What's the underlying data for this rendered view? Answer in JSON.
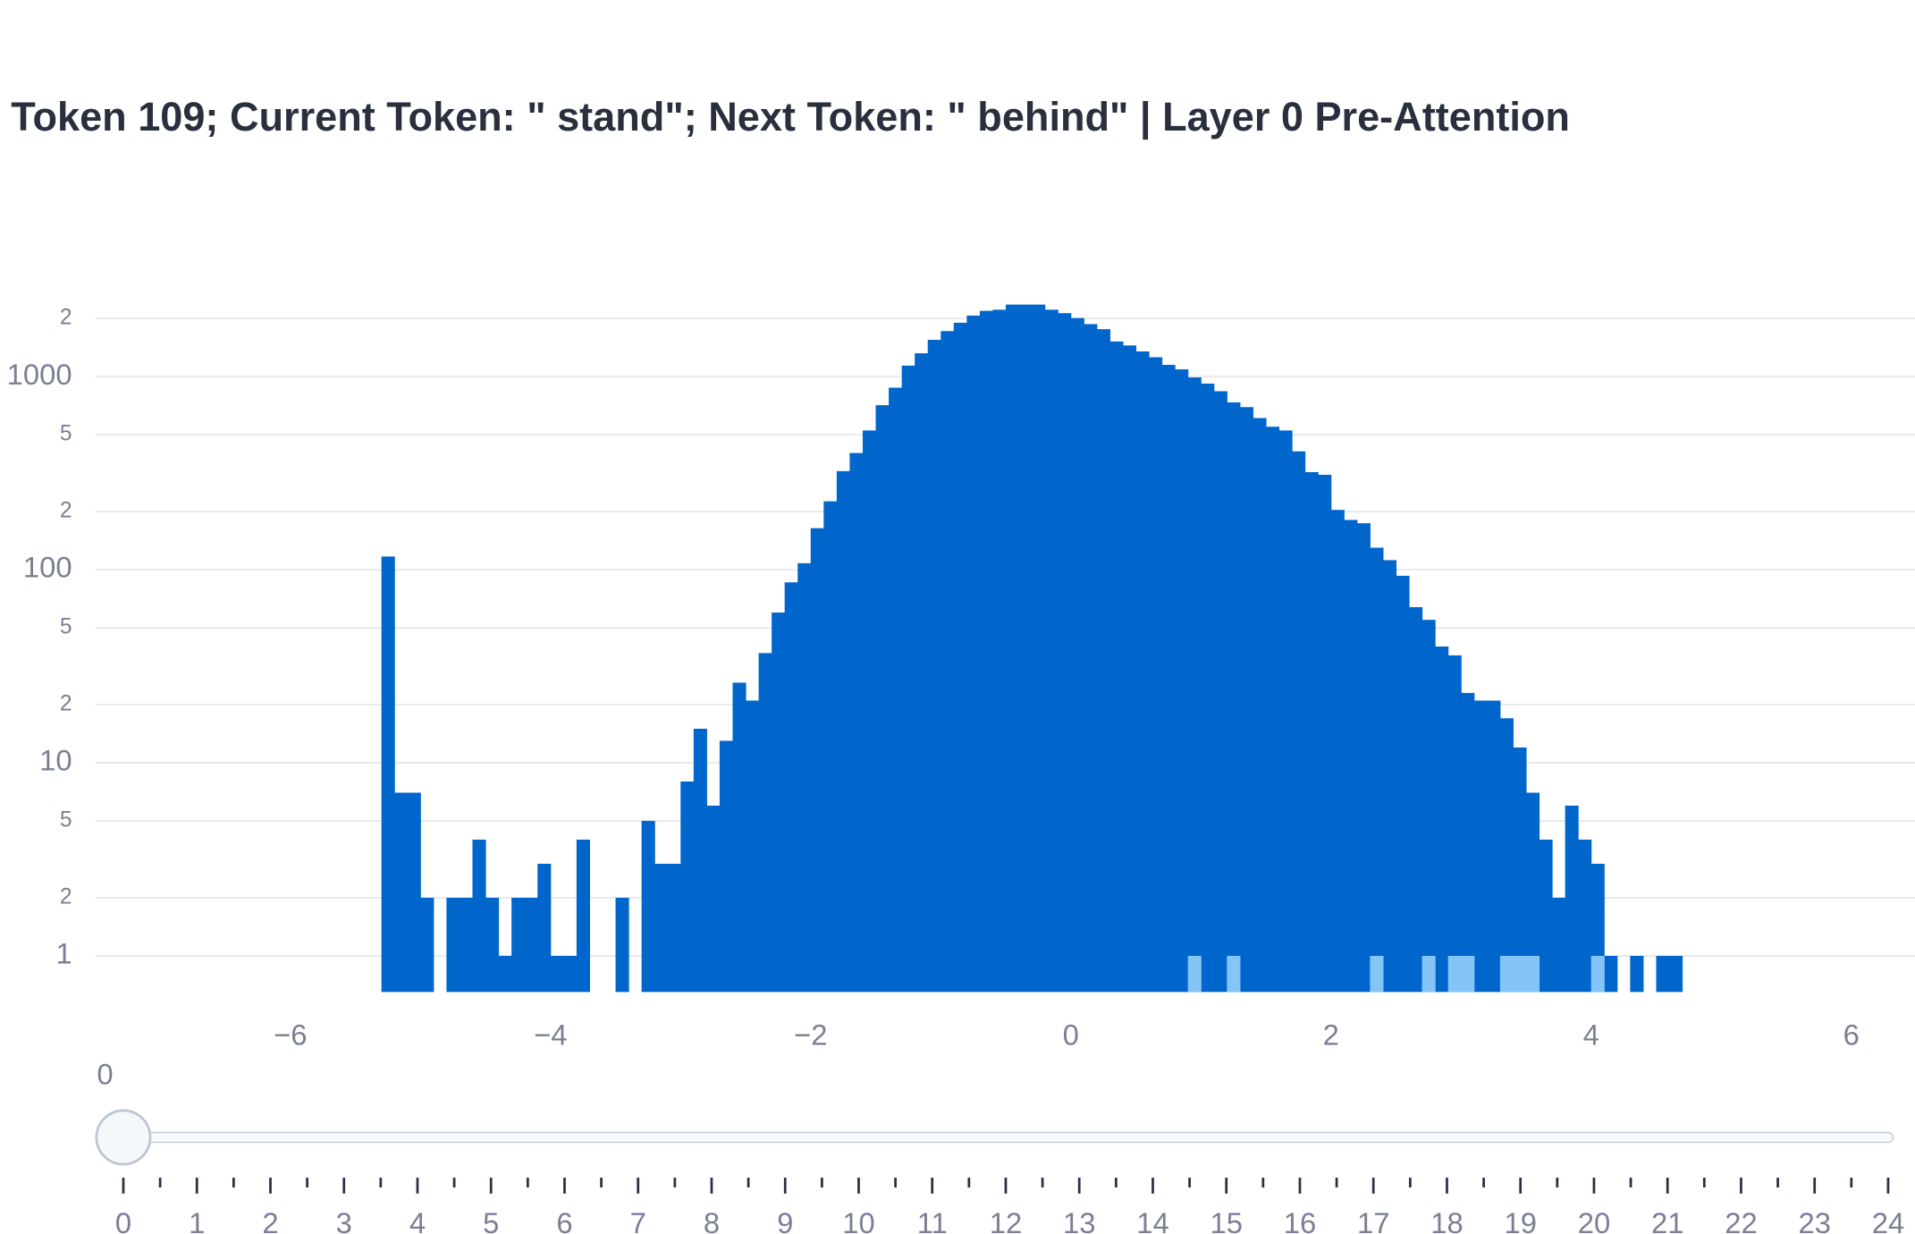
{
  "chart_data": {
    "type": "histogram",
    "title": "Token 109; Current Token: \" stand\"; Next Token: \" behind\" | Layer 0 Pre-Attention",
    "log_y": true,
    "grid": true,
    "bins": [
      -5.3,
      -5.2,
      -5.1,
      -5.0,
      -4.9,
      -4.8,
      -4.7,
      -4.6,
      -4.5,
      -4.4,
      -4.3,
      -4.2,
      -4.1,
      -4.0,
      -3.9,
      -3.8,
      -3.7,
      -3.6,
      -3.5,
      -3.4,
      -3.3,
      -3.2,
      -3.1,
      -3.0,
      -2.9,
      -2.8,
      -2.7,
      -2.6,
      -2.5,
      -2.4,
      -2.3,
      -2.2,
      -2.1,
      -2.0,
      -1.9,
      -1.8,
      -1.7,
      -1.6,
      -1.5,
      -1.4,
      -1.3,
      -1.2,
      -1.1,
      -1.0,
      -0.9,
      -0.8,
      -0.7,
      -0.6,
      -0.5,
      -0.4,
      -0.3,
      -0.2,
      -0.1,
      0.0,
      0.1,
      0.2,
      0.3,
      0.4,
      0.5,
      0.6,
      0.7,
      0.8,
      0.9,
      1.0,
      1.1,
      1.2,
      1.3,
      1.4,
      1.5,
      1.6,
      1.7,
      1.8,
      1.9,
      2.0,
      2.1,
      2.2,
      2.3,
      2.4,
      2.5,
      2.6,
      2.7,
      2.8,
      2.9,
      3.0,
      3.1,
      3.2,
      3.3,
      3.4,
      3.5,
      3.6,
      3.7,
      3.8,
      3.9,
      4.0,
      4.1,
      4.2,
      4.3,
      4.4,
      4.5,
      4.6,
      4.7
    ],
    "series": [
      {
        "color": "#0066cc",
        "values": [
          117,
          7,
          7,
          2,
          0,
          2,
          2,
          4,
          2,
          1,
          2,
          2,
          3,
          1,
          1,
          4,
          0,
          0,
          2,
          0,
          5,
          3,
          3,
          8,
          15,
          6,
          13,
          26,
          21,
          37,
          60,
          86,
          108,
          164,
          226,
          324,
          402,
          526,
          711,
          876,
          1140,
          1320,
          1550,
          1720,
          1900,
          2070,
          2190,
          2220,
          2360,
          2360,
          2360,
          2220,
          2130,
          2010,
          1870,
          1760,
          1520,
          1450,
          1350,
          1260,
          1150,
          1090,
          990,
          920,
          840,
          735,
          695,
          610,
          550,
          526,
          410,
          320,
          310,
          204,
          181,
          174,
          130,
          112,
          93,
          64,
          55,
          40,
          36,
          23,
          21,
          21,
          17,
          12,
          7,
          4,
          2,
          6,
          4,
          3,
          1,
          0,
          1,
          0,
          1,
          1
        ]
      },
      {
        "color": "#85c4f7",
        "values": [
          null,
          null,
          null,
          null,
          null,
          null,
          null,
          null,
          null,
          null,
          null,
          null,
          null,
          null,
          null,
          null,
          null,
          null,
          null,
          null,
          null,
          null,
          null,
          null,
          null,
          null,
          null,
          null,
          null,
          null,
          null,
          null,
          null,
          null,
          null,
          null,
          null,
          null,
          null,
          null,
          null,
          null,
          null,
          null,
          null,
          null,
          null,
          null,
          null,
          null,
          null,
          null,
          null,
          null,
          null,
          null,
          null,
          null,
          null,
          null,
          null,
          null,
          1,
          null,
          null,
          1,
          null,
          null,
          null,
          null,
          null,
          null,
          null,
          null,
          null,
          null,
          1,
          null,
          null,
          null,
          1,
          null,
          1,
          1,
          null,
          null,
          1,
          1,
          1,
          null,
          null,
          null,
          null,
          1,
          null,
          null,
          null,
          null,
          null,
          null
        ]
      }
    ],
    "xlim": [
      -7.5,
      6.49
    ],
    "xticks": [
      {
        "value": -6,
        "label": "−6"
      },
      {
        "value": -4,
        "label": "−4"
      },
      {
        "value": -2,
        "label": "−2"
      },
      0,
      2,
      4,
      6
    ],
    "ylim": [
      0.65,
      2700
    ],
    "yticks": [
      1,
      2,
      5,
      10,
      {
        "value": 20,
        "label": "2"
      },
      {
        "value": 50,
        "label": "5"
      },
      100,
      {
        "value": 200,
        "label": "2"
      },
      {
        "value": 500,
        "label": "5"
      },
      1000,
      {
        "value": 2000,
        "label": "2"
      }
    ],
    "slider": {
      "current_label": "0",
      "ticks": [
        0,
        1,
        2,
        3,
        4,
        5,
        6,
        7,
        8,
        9,
        10,
        11,
        12,
        13,
        14,
        15,
        16,
        17,
        18,
        19,
        20,
        21,
        22,
        23,
        24
      ]
    }
  }
}
